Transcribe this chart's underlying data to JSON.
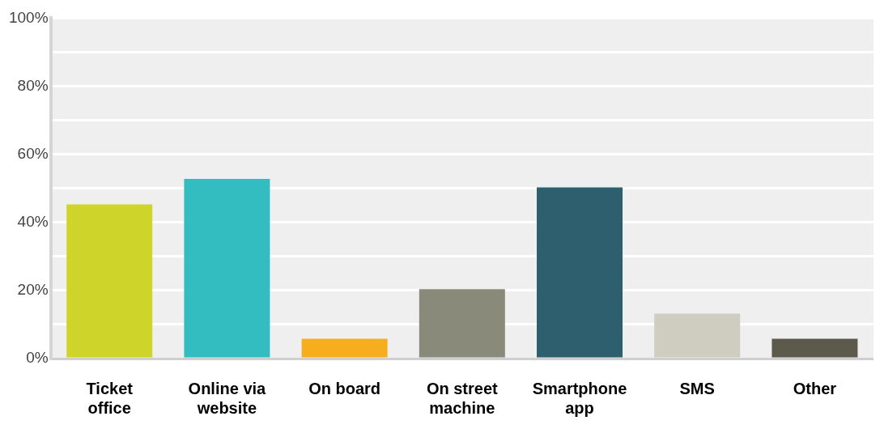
{
  "chart_data": {
    "type": "bar",
    "categories": [
      "Ticket office",
      "Online via website",
      "On board",
      "On street machine",
      "Smartphone app",
      "SMS",
      "Other"
    ],
    "values": [
      45.3,
      52.8,
      5.8,
      20.4,
      50.3,
      13.2,
      5.8
    ],
    "colors": [
      "#cfd42a",
      "#33bdc0",
      "#f6ae1e",
      "#898a7a",
      "#2e5f6e",
      "#cfcdbf",
      "#5c5a4b"
    ],
    "ylim": [
      0,
      100
    ],
    "yticks": [
      {
        "value": 0,
        "label": "0%"
      },
      {
        "value": 10,
        "label": null
      },
      {
        "value": 20,
        "label": "20%"
      },
      {
        "value": 30,
        "label": null
      },
      {
        "value": 40,
        "label": "40%"
      },
      {
        "value": 50,
        "label": null
      },
      {
        "value": 60,
        "label": "60%"
      },
      {
        "value": 70,
        "label": null
      },
      {
        "value": 80,
        "label": "80%"
      },
      {
        "value": 90,
        "label": null
      },
      {
        "value": 100,
        "label": "100%"
      }
    ],
    "grid": "y"
  }
}
